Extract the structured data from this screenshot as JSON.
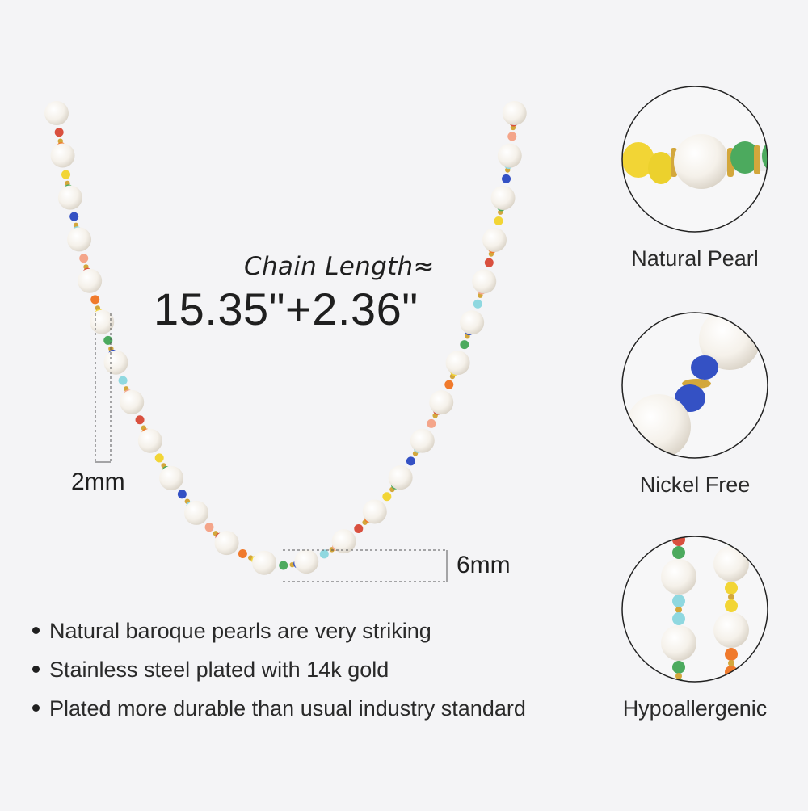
{
  "chain": {
    "label": "Chain Length≈",
    "value": "15.35\"+2.36\""
  },
  "dimensions": {
    "bead_size": "2mm",
    "pearl_size": "6mm"
  },
  "features": [
    "Natural baroque pearls are very striking",
    "Stainless steel plated with 14k gold",
    "Plated more durable than usual industry standard"
  ],
  "details": [
    {
      "caption": "Natural Pearl"
    },
    {
      "caption": "Nickel Free"
    },
    {
      "caption": "Hypoallergenic"
    }
  ],
  "colors": {
    "background": "#f4f4f6",
    "pearl": "#fbfaf6",
    "gold": "#d3a73c",
    "beads": [
      "#d9503f",
      "#f07a2c",
      "#f2d535",
      "#4caa5e",
      "#3451c4",
      "#8fd8e0",
      "#f4a58a"
    ]
  }
}
